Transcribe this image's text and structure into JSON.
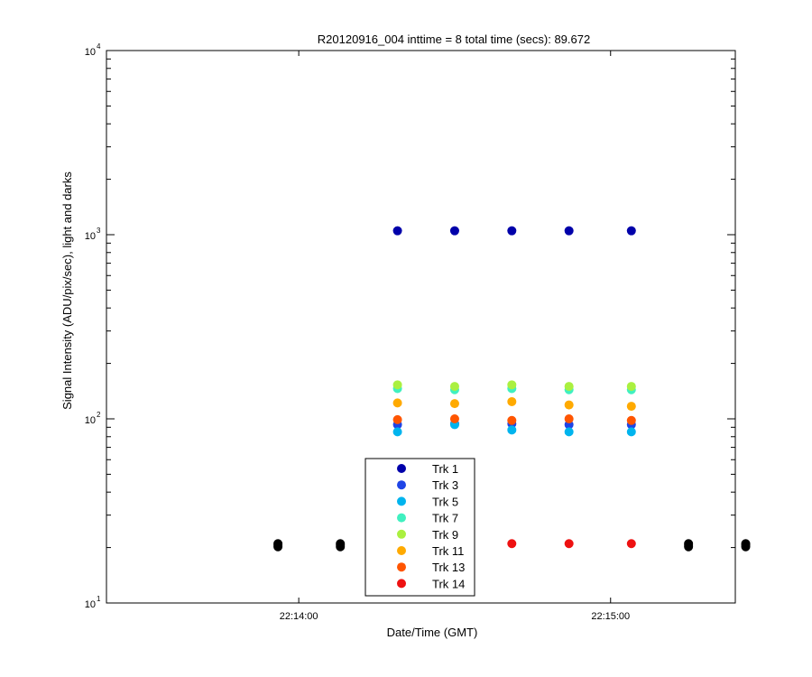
{
  "chart_data": {
    "type": "scatter",
    "title": "R20120916_004 inttime = 8 total time (secs): 89.672",
    "xlabel": "Date/Time (GMT)",
    "ylabel": "Signal Intensity (ADU/pix/sec), light and darks",
    "yscale": "log",
    "ylim": [
      10,
      10000
    ],
    "y_ticks": [
      {
        "value": 10,
        "base": "10",
        "exp": "1"
      },
      {
        "value": 100,
        "base": "10",
        "exp": "2"
      },
      {
        "value": 1000,
        "base": "10",
        "exp": "3"
      },
      {
        "value": 10000,
        "base": "10",
        "exp": "4"
      }
    ],
    "xlim": [
      "22:13:23",
      "22:15:24"
    ],
    "x_ticks": [
      "22:14:00",
      "22:15:00"
    ],
    "legend_position": "bottom-center",
    "series": [
      {
        "name": "Trk 1",
        "color": "#0000aa",
        "points": [
          [
            "22:14:19",
            1050
          ],
          [
            "22:14:30",
            1050
          ],
          [
            "22:14:41",
            1050
          ],
          [
            "22:14:52",
            1050
          ],
          [
            "22:15:04",
            1050
          ]
        ]
      },
      {
        "name": "Trk 3",
        "color": "#1f45e6",
        "points": [
          [
            "22:14:19",
            93
          ],
          [
            "22:14:30",
            94
          ],
          [
            "22:14:41",
            94
          ],
          [
            "22:14:52",
            93
          ],
          [
            "22:15:04",
            93
          ]
        ]
      },
      {
        "name": "Trk 5",
        "color": "#00b4ee",
        "points": [
          [
            "22:14:19",
            85
          ],
          [
            "22:14:30",
            93
          ],
          [
            "22:14:41",
            87
          ],
          [
            "22:14:52",
            85
          ],
          [
            "22:15:04",
            85
          ]
        ]
      },
      {
        "name": "Trk 7",
        "color": "#40f0c0",
        "points": [
          [
            "22:14:19",
            146
          ],
          [
            "22:14:30",
            144
          ],
          [
            "22:14:41",
            146
          ],
          [
            "22:14:52",
            144
          ],
          [
            "22:15:04",
            144
          ]
        ]
      },
      {
        "name": "Trk 9",
        "color": "#aaf040",
        "points": [
          [
            "22:14:19",
            153
          ],
          [
            "22:14:30",
            150
          ],
          [
            "22:14:41",
            153
          ],
          [
            "22:14:52",
            150
          ],
          [
            "22:15:04",
            150
          ]
        ]
      },
      {
        "name": "Trk 11",
        "color": "#ffaa00",
        "points": [
          [
            "22:14:19",
            122
          ],
          [
            "22:14:30",
            121
          ],
          [
            "22:14:41",
            124
          ],
          [
            "22:14:52",
            119
          ],
          [
            "22:15:04",
            117
          ]
        ]
      },
      {
        "name": "Trk 13",
        "color": "#ff5500",
        "points": [
          [
            "22:14:19",
            99
          ],
          [
            "22:14:30",
            100
          ],
          [
            "22:14:41",
            98
          ],
          [
            "22:14:52",
            100
          ],
          [
            "22:15:04",
            98
          ]
        ]
      },
      {
        "name": "Trk 14",
        "color": "#ee1111",
        "points": [
          [
            "22:14:41",
            21
          ],
          [
            "22:14:52",
            21
          ],
          [
            "22:15:04",
            21
          ]
        ]
      },
      {
        "name": "",
        "color": "#000000",
        "points": [
          [
            "22:13:56",
            20.2
          ],
          [
            "22:13:56",
            20.6
          ],
          [
            "22:13:56",
            21.0
          ],
          [
            "22:14:08",
            20.2
          ],
          [
            "22:14:08",
            20.6
          ],
          [
            "22:14:08",
            21.0
          ],
          [
            "22:15:15",
            20.2
          ],
          [
            "22:15:15",
            20.6
          ],
          [
            "22:15:15",
            21.0
          ],
          [
            "22:15:26",
            20.2
          ],
          [
            "22:15:26",
            20.6
          ],
          [
            "22:15:26",
            21.0
          ]
        ]
      }
    ]
  }
}
